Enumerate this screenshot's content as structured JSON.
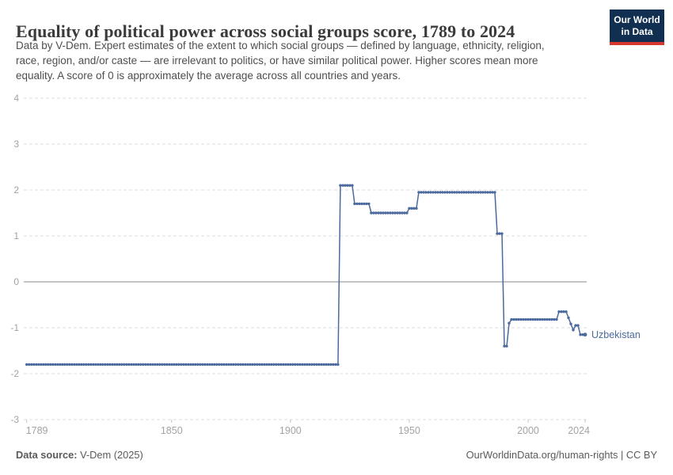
{
  "header": {
    "title": "Equality of political power across social groups score, 1789 to 2024",
    "subtitle_lines": [
      "Data by V-Dem. Expert estimates of the extent to which social groups — defined by language, ethnicity, religion,",
      "race, region, and/or caste — are irrelevant to politics, or have similar political power. Higher scores mean more",
      "equality. A score of 0 is approximately the average across all countries and years."
    ],
    "logo": {
      "line1": "Our World",
      "line2": "in Data",
      "bg": "#112F51",
      "accent": "#D6382D"
    }
  },
  "chart_data": {
    "type": "line",
    "title": "Equality of political power across social groups score, 1789 to 2024",
    "xlabel": "",
    "ylabel": "",
    "xlim": [
      1789,
      2024
    ],
    "ylim": [
      -3,
      4
    ],
    "x_ticks": [
      1789,
      1850,
      1900,
      1950,
      2000,
      2024
    ],
    "y_ticks": [
      4,
      3,
      2,
      1,
      0,
      -1,
      -2,
      -3
    ],
    "grid": "horizontal dashed, solid line at 0",
    "legend_position": "line-end label",
    "series": [
      {
        "name": "Uzbekistan",
        "color": "#4C6A9D",
        "points": [
          [
            1789,
            -1.8
          ],
          [
            1920,
            -1.8
          ],
          [
            1921,
            2.1
          ],
          [
            1926,
            2.1
          ],
          [
            1927,
            1.7
          ],
          [
            1933,
            1.7
          ],
          [
            1934,
            1.5
          ],
          [
            1949,
            1.5
          ],
          [
            1950,
            1.6
          ],
          [
            1953,
            1.6
          ],
          [
            1954,
            1.95
          ],
          [
            1986,
            1.95
          ],
          [
            1987,
            1.05
          ],
          [
            1989,
            1.05
          ],
          [
            1990,
            -1.4
          ],
          [
            1991,
            -1.4
          ],
          [
            1992,
            -0.9
          ],
          [
            1993,
            -0.82
          ],
          [
            2012,
            -0.82
          ],
          [
            2013,
            -0.65
          ],
          [
            2016,
            -0.65
          ],
          [
            2019,
            -1.05
          ],
          [
            2020,
            -0.95
          ],
          [
            2021,
            -0.95
          ],
          [
            2022,
            -1.15
          ],
          [
            2024,
            -1.15
          ]
        ]
      }
    ],
    "colors": {
      "grid": "#dcdcdc",
      "zero_line": "#8a8a8a",
      "axis_text": "#a3a3a3",
      "tick_mark": "#c4c4c4"
    }
  },
  "footer": {
    "source_label": "Data source:",
    "source_value": " V-Dem (2025)",
    "right_text": "OurWorldinData.org/human-rights | CC BY"
  }
}
